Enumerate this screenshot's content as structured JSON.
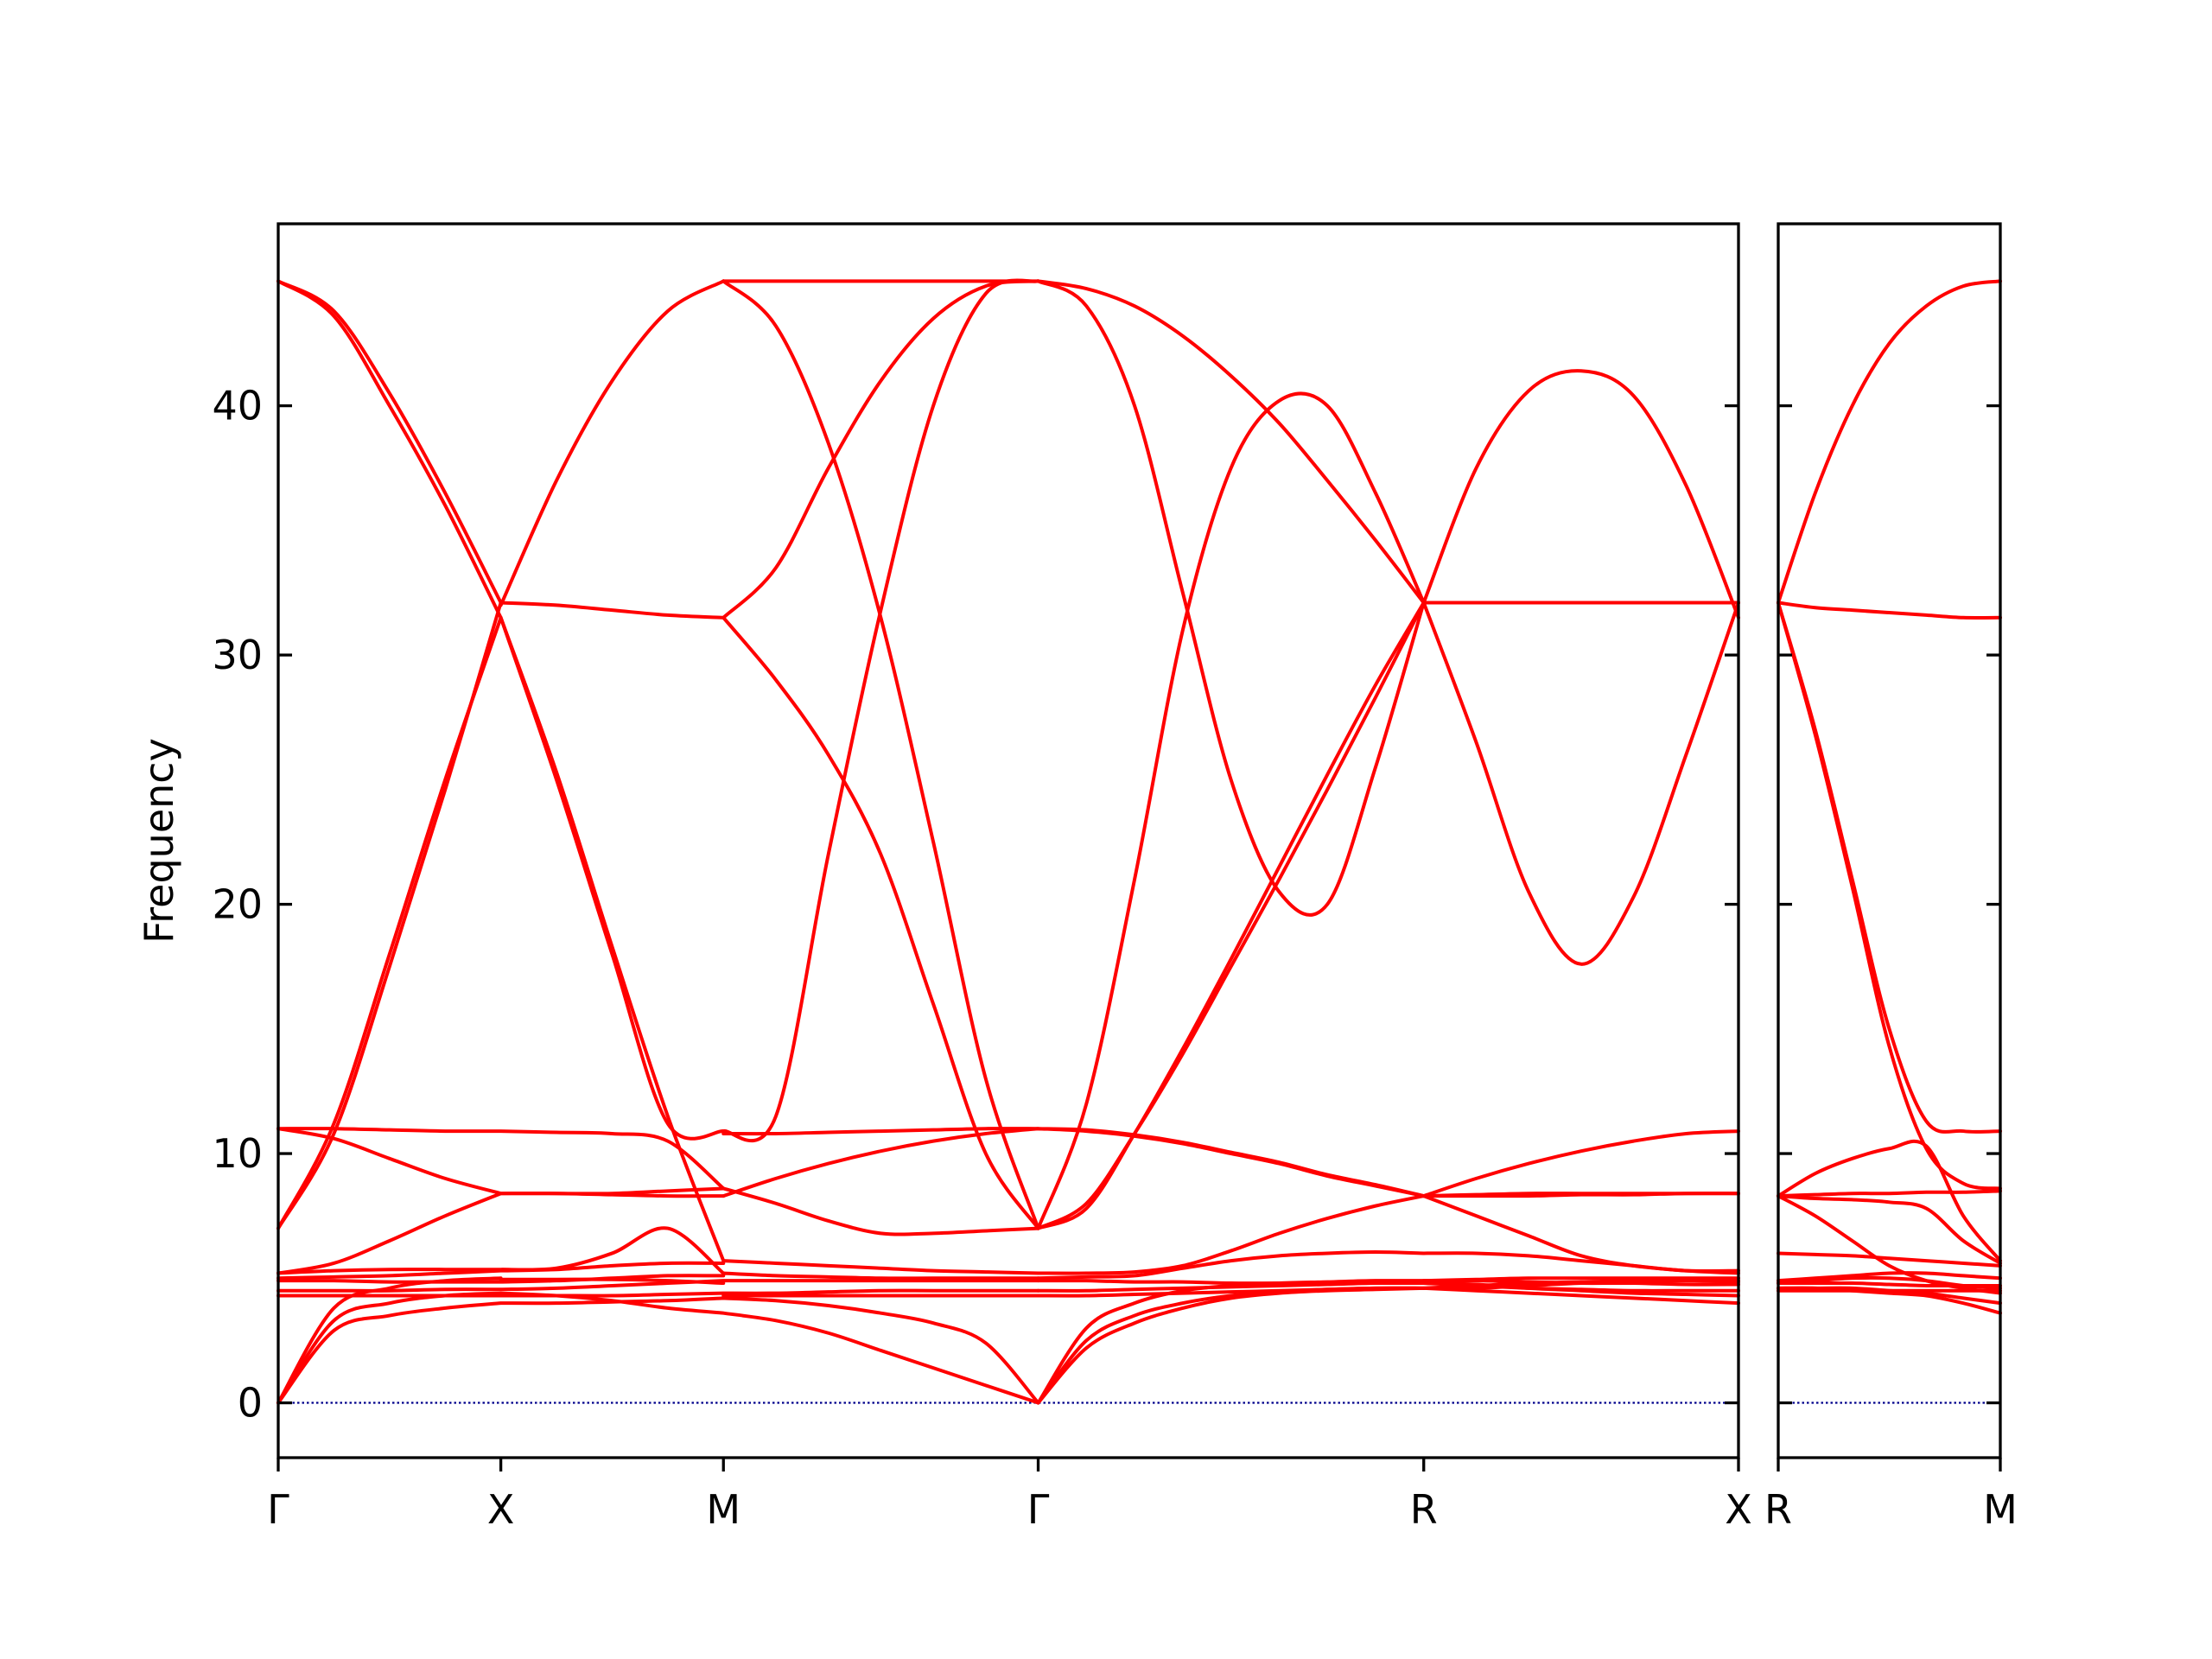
{
  "chart_data": [
    {
      "type": "line",
      "ylabel": "Frequency",
      "x": [
        0,
        0.125,
        0.25,
        0.375,
        0.5,
        0.5,
        0.625,
        0.75,
        0.875,
        1.0,
        1.0,
        1.1178,
        1.2357,
        1.3535,
        1.4714,
        1.5892,
        1.707,
        1.707,
        1.8153,
        1.9235,
        2.0318,
        2.14,
        2.2483,
        2.3565,
        2.4648,
        2.573,
        2.573,
        2.6909,
        2.8087,
        2.9266,
        3.0444,
        3.1623,
        3.28
      ],
      "xlim": [
        0,
        3.28
      ],
      "xticks": [
        {
          "value": 0,
          "label": "Γ"
        },
        {
          "value": 0.5,
          "label": "X"
        },
        {
          "value": 1.0,
          "label": "M"
        },
        {
          "value": 1.707,
          "label": "Γ"
        },
        {
          "value": 2.573,
          "label": "R"
        },
        {
          "value": 3.28,
          "label": "X"
        }
      ],
      "ylim": [
        -2.2,
        47.3
      ],
      "yticks": [
        0,
        10,
        20,
        30,
        40
      ],
      "grid": false,
      "hline": 0,
      "hline_color": "#00008b",
      "series": [
        {
          "color": "#ff0000",
          "values": [
            45,
            43.8,
            40.5,
            36.5,
            32.1,
            32.1,
            32.0,
            31.8,
            31.6,
            31.5,
            45,
            45,
            45,
            45,
            45,
            45,
            45,
            45,
            44.7,
            44.0,
            42.8,
            41.2,
            39.3,
            37.0,
            34.6,
            32.1,
            32.1,
            32.1,
            32.1,
            32.1,
            32.1,
            32.1,
            32.1
          ]
        },
        {
          "color": "#ff0000",
          "values": [
            45,
            43.6,
            40.0,
            36.0,
            31.5,
            31.5,
            25,
            18,
            11.2,
            10.9,
            45,
            43.2,
            38.5,
            31.5,
            22.5,
            13,
            7.0,
            45,
            44,
            40,
            32.5,
            25,
            20.5,
            20.0,
            25.5,
            32.1,
            32.1,
            37.5,
            40.6,
            41.4,
            40.4,
            36.8,
            31.5
          ]
        },
        {
          "color": "#ff0000",
          "values": [
            7,
            11.2,
            18.0,
            25.0,
            31.5,
            31.5,
            25.3,
            18.3,
            11.5,
            5.7,
            31.5,
            33.5,
            37.5,
            41,
            43.5,
            44.8,
            45,
            7,
            12,
            21,
            31,
            37.5,
            40.2,
            40.0,
            36.5,
            32.1,
            32.1,
            26.5,
            20.5,
            17.6,
            20.3,
            26,
            32.1
          ]
        },
        {
          "color": "#ff0000",
          "values": [
            7,
            10.8,
            17.5,
            24.6,
            32.1,
            32,
            37,
            41,
            43.8,
            45,
            31.5,
            29,
            26,
            22,
            16,
            10,
            7,
            7,
            8.0,
            10.8,
            14.0,
            17.5,
            21.0,
            24.6,
            28.3,
            32.1,
            8.3,
            9.0,
            9.6,
            10.1,
            10.5,
            10.8,
            10.9
          ]
        },
        {
          "color": "#ff0000",
          "values": [
            11,
            11,
            10.95,
            10.9,
            10.9,
            10.9,
            10.85,
            10.8,
            10.5,
            8.6,
            10.9,
            11.5,
            22,
            31.8,
            40,
            44.5,
            45,
            7,
            7.8,
            10.8,
            14.2,
            17.8,
            21.5,
            25.2,
            28.8,
            32.1,
            8.3,
            8.3,
            8.3,
            8.35,
            8.35,
            8.4,
            8.4
          ]
        },
        {
          "color": "#ff0000",
          "values": [
            11,
            10.6,
            9.8,
            9.0,
            8.4,
            8.4,
            8.4,
            8.35,
            8.3,
            8.3,
            10.8,
            10.8,
            10.85,
            10.9,
            10.95,
            11,
            11,
            11,
            10.9,
            10.7,
            10.4,
            10.0,
            9.6,
            9.1,
            8.7,
            8.3,
            8.3,
            7.5,
            6.7,
            5.9,
            5.5,
            5.3,
            5.2
          ]
        },
        {
          "color": "#ff0000",
          "values": [
            5.2,
            5.6,
            6.5,
            7.5,
            8.4,
            8.4,
            8.4,
            8.4,
            8.5,
            8.6,
            8.3,
            9.0,
            9.6,
            10.1,
            10.5,
            10.8,
            11,
            11,
            10.95,
            10.75,
            10.45,
            10.05,
            9.65,
            9.15,
            8.75,
            8.3,
            6.0,
            6.0,
            5.9,
            5.7,
            5.5,
            5.3,
            5.3
          ]
        },
        {
          "color": "#ff0000",
          "values": [
            5.2,
            5.3,
            5.35,
            5.35,
            5.35,
            5.35,
            5.4,
            6.0,
            7.0,
            5.2,
            8.6,
            8.0,
            7.3,
            6.8,
            6.8,
            6.9,
            7.0,
            5.2,
            5.2,
            5.25,
            5.5,
            6.1,
            6.8,
            7.4,
            7.9,
            8.3,
            4.9,
            4.95,
            5.0,
            5.0,
            5.0,
            5.0,
            5.0
          ]
        },
        {
          "color": "#ff0000",
          "values": [
            5.0,
            5.05,
            5.1,
            5.2,
            5.3,
            5.3,
            5.35,
            5.5,
            5.6,
            5.6,
            5.7,
            5.6,
            5.5,
            5.4,
            5.3,
            5.25,
            5.2,
            5.0,
            5.05,
            5.1,
            5.4,
            5.7,
            5.9,
            6.0,
            6.05,
            6.0,
            4.8,
            4.7,
            4.6,
            4.55,
            4.5,
            4.5,
            4.5
          ]
        },
        {
          "color": "#ff0000",
          "values": [
            4.9,
            4.9,
            4.85,
            4.85,
            4.85,
            4.85,
            4.9,
            5.0,
            5.1,
            5.1,
            5.2,
            5.1,
            5.05,
            5.0,
            5.0,
            5.0,
            5.0,
            4.9,
            4.9,
            4.85,
            4.85,
            4.8,
            4.8,
            4.8,
            4.8,
            4.8,
            4.8,
            4.75,
            4.6,
            4.5,
            4.4,
            4.35,
            4.3
          ]
        },
        {
          "color": "#ff0000",
          "values": [
            4.5,
            4.5,
            4.5,
            4.55,
            4.55,
            4.55,
            4.6,
            4.7,
            4.8,
            4.9,
            4.9,
            4.9,
            4.9,
            4.9,
            4.9,
            4.9,
            4.9,
            4.5,
            4.5,
            4.55,
            4.6,
            4.65,
            4.7,
            4.75,
            4.8,
            4.8,
            4.6,
            4.5,
            4.4,
            4.3,
            4.2,
            4.1,
            4.0
          ]
        },
        {
          "color": "#ff0000",
          "values": [
            4.3,
            4.3,
            4.3,
            4.3,
            4.3,
            4.3,
            4.3,
            4.3,
            4.35,
            4.4,
            4.4,
            4.4,
            4.45,
            4.5,
            4.5,
            4.5,
            4.5,
            4.3,
            4.3,
            4.35,
            4.4,
            4.45,
            4.5,
            4.55,
            4.6,
            4.6,
            4.6,
            4.6,
            4.7,
            4.8,
            4.85,
            4.9,
            4.9
          ]
        },
        {
          "color": "#ff0000",
          "values": [
            0,
            2.9,
            3.5,
            3.8,
            4.0,
            4.0,
            4.0,
            4.05,
            4.1,
            4.2,
            4.2,
            4.1,
            3.9,
            3.6,
            3.2,
            2.4,
            0,
            0,
            2.5,
            3.5,
            4.0,
            4.3,
            4.45,
            4.55,
            4.6,
            4.6,
            4.6,
            4.7,
            4.8,
            4.85,
            4.9,
            4.9,
            4.85
          ]
        },
        {
          "color": "#ff0000",
          "values": [
            0,
            3.3,
            4.0,
            4.3,
            4.4,
            4.4,
            4.3,
            4.1,
            3.8,
            3.6,
            3.6,
            3.3,
            2.8,
            2.1,
            1.4,
            0.7,
            0,
            0,
            3.0,
            4.0,
            4.5,
            4.7,
            4.8,
            4.85,
            4.9,
            4.9,
            4.9,
            4.9,
            4.85,
            4.8,
            4.8,
            4.75,
            4.75
          ]
        },
        {
          "color": "#ff0000",
          "values": [
            0,
            3.8,
            4.6,
            4.9,
            5.0,
            4.95,
            4.95,
            4.95,
            4.9,
            4.8,
            4.3,
            4.3,
            4.3,
            4.3,
            4.3,
            4.3,
            4.3,
            0,
            2.2,
            3.2,
            3.8,
            4.2,
            4.4,
            4.5,
            4.55,
            4.6,
            8.3,
            8.35,
            8.4,
            8.4,
            8.4,
            8.4,
            8.4
          ]
        }
      ]
    },
    {
      "type": "line",
      "x": [
        0,
        0.0833,
        0.1667,
        0.25,
        0.3333,
        0.4167,
        0.5
      ],
      "xlim": [
        0,
        0.5
      ],
      "xticks": [
        {
          "value": 0,
          "label": "R"
        },
        {
          "value": 0.5,
          "label": "M"
        }
      ],
      "ylim": [
        -2.2,
        47.3
      ],
      "yticks": [
        0,
        10,
        20,
        30,
        40
      ],
      "ytick_labels": false,
      "grid": false,
      "hline": 0,
      "hline_color": "#00008b",
      "series": [
        {
          "color": "#ff0000",
          "values": [
            32.1,
            36.5,
            40.0,
            42.5,
            44.0,
            44.8,
            45
          ]
        },
        {
          "color": "#ff0000",
          "values": [
            32.1,
            31.9,
            31.8,
            31.7,
            31.6,
            31.5,
            31.5
          ]
        },
        {
          "color": "#ff0000",
          "values": [
            32.1,
            27,
            21,
            15,
            11.3,
            10.9,
            10.9
          ]
        },
        {
          "color": "#ff0000",
          "values": [
            32.1,
            26.8,
            20.7,
            14.3,
            10.2,
            8.8,
            8.6
          ]
        },
        {
          "color": "#ff0000",
          "values": [
            8.3,
            9.2,
            9.8,
            10.2,
            10.3,
            7.5,
            5.7
          ]
        },
        {
          "color": "#ff0000",
          "values": [
            8.3,
            8.35,
            8.4,
            8.4,
            8.45,
            8.45,
            8.5
          ]
        },
        {
          "color": "#ff0000",
          "values": [
            8.3,
            8.2,
            8.15,
            8.05,
            7.8,
            6.5,
            5.6
          ]
        },
        {
          "color": "#ff0000",
          "values": [
            6.0,
            5.95,
            5.9,
            5.8,
            5.7,
            5.6,
            5.5
          ]
        },
        {
          "color": "#ff0000",
          "values": [
            8.3,
            7.5,
            6.5,
            5.5,
            4.9,
            4.6,
            4.4
          ]
        },
        {
          "color": "#ff0000",
          "values": [
            4.9,
            5.0,
            5.1,
            5.2,
            5.2,
            5.1,
            5.0
          ]
        },
        {
          "color": "#ff0000",
          "values": [
            4.8,
            4.9,
            5.0,
            5.0,
            4.9,
            4.7,
            4.6
          ]
        },
        {
          "color": "#ff0000",
          "values": [
            4.6,
            4.6,
            4.6,
            4.5,
            4.4,
            4.2,
            4.0
          ]
        },
        {
          "color": "#ff0000",
          "values": [
            4.6,
            4.6,
            4.5,
            4.4,
            4.3,
            4.0,
            3.6
          ]
        },
        {
          "color": "#ff0000",
          "values": [
            4.5,
            4.5,
            4.5,
            4.5,
            4.5,
            4.5,
            4.5
          ]
        },
        {
          "color": "#ff0000",
          "values": [
            4.8,
            4.8,
            4.8,
            4.75,
            4.7,
            4.7,
            4.7
          ]
        }
      ]
    }
  ]
}
